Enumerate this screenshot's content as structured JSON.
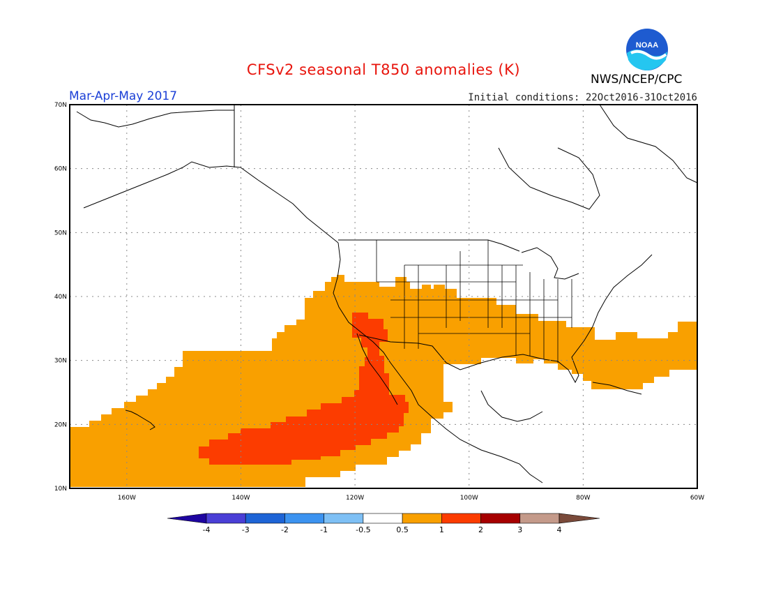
{
  "header": {
    "title": "CFSv2 seasonal T850 anomalies (K)",
    "period": "Mar-Apr-May 2017",
    "initial_conditions": "Initial conditions: 22Oct2016-31Oct2016",
    "agency": "NWS/NCEP/CPC",
    "logo_text": "NOAA"
  },
  "map": {
    "lat_labels": [
      "70N",
      "60N",
      "50N",
      "40N",
      "30N",
      "20N",
      "10N"
    ],
    "lon_labels": [
      "160W",
      "140W",
      "120W",
      "100W",
      "80W",
      "60W"
    ],
    "lon_range": [
      "-170",
      "-60"
    ],
    "lat_range": [
      "10",
      "70"
    ]
  },
  "colorbar": {
    "labels": [
      "-4",
      "-3",
      "-2",
      "-1",
      "-0.5",
      "0.5",
      "1",
      "2",
      "3",
      "4"
    ],
    "colors": [
      "#1e05a0",
      "#4a3fd6",
      "#1e64d6",
      "#3c93f0",
      "#7ec0f5",
      "#ffffff",
      "#f9a000",
      "#fc3c00",
      "#a60000",
      "#c49a8a",
      "#7a4a3a"
    ]
  }
}
